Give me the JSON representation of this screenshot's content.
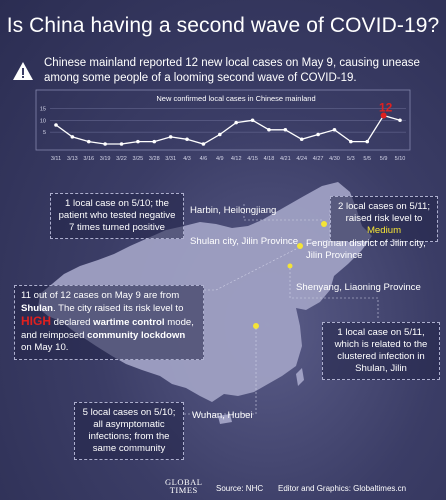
{
  "title": "Is China having a second wave of COVID-19?",
  "intro": "Chinese mainland reported 12 new local cases on May 9, causing unease among some people of a looming second wave of COVID-19.",
  "chart_data": {
    "type": "line",
    "title": "New confirmed local cases in Chinese mainland",
    "categories": [
      "3/11",
      "3/13",
      "3/16",
      "3/19",
      "3/22",
      "3/25",
      "3/28",
      "3/31",
      "4/3",
      "4/6",
      "4/9",
      "4/12",
      "4/15",
      "4/18",
      "4/21",
      "4/24",
      "4/27",
      "4/30",
      "5/3",
      "5/5",
      "5/9",
      "5/10"
    ],
    "values": [
      8,
      3,
      1,
      0,
      0,
      1,
      1,
      3,
      2,
      0,
      4,
      9,
      10,
      6,
      6,
      2,
      4,
      6,
      1,
      1,
      12,
      10
    ],
    "yticks": [
      5,
      10,
      15
    ],
    "ylim": [
      0,
      16
    ],
    "highlight": {
      "category": "5/9",
      "label": "12"
    },
    "grid": true,
    "line_color": "#ffffff",
    "highlight_color": "#e0201f"
  },
  "annotations": {
    "harbin_box": "1 local case on 5/10; the patient who tested negative 7 times turned positive",
    "harbin_label": "Harbin, Heilongjiang",
    "fengman_box_pre": "2 local cases on 5/11; raised risk level to ",
    "fengman_box_level": "Medium",
    "shulan_label": "Shulan city, Jilin Province",
    "fengman_label": "Fengman district of Jilin city, Jilin Province",
    "shulan_box_1": "11 out of 12 cases on May 9 are from ",
    "shulan_box_city": "Shulan",
    "shulan_box_2": ". The city raised its risk level to ",
    "shulan_box_level": "HIGH",
    "shulan_box_3": " declared ",
    "shulan_box_b1": "wartime control",
    "shulan_box_4": " mode, and reimposed ",
    "shulan_box_b2": "community lockdown",
    "shulan_box_5": " on May 10.",
    "shenyang_label": "Shenyang, Liaoning Province",
    "shenyang_box": "1 local case on 5/11, which is related to the clustered infection in Shulan, Jilin",
    "wuhan_box": "5 local cases on 5/10; all asymptomatic infections; from the same community",
    "wuhan_label": "Wuhan, Hubei"
  },
  "footer": {
    "logo_line1": "GLOBAL",
    "logo_line2": "TIMES",
    "source": "Source: NHC",
    "credit": "Editor and Graphics: Globaltimes.cn"
  },
  "colors": {
    "accent": "#f4e436",
    "alert": "#e0201f",
    "map": "#9fa0c3"
  }
}
